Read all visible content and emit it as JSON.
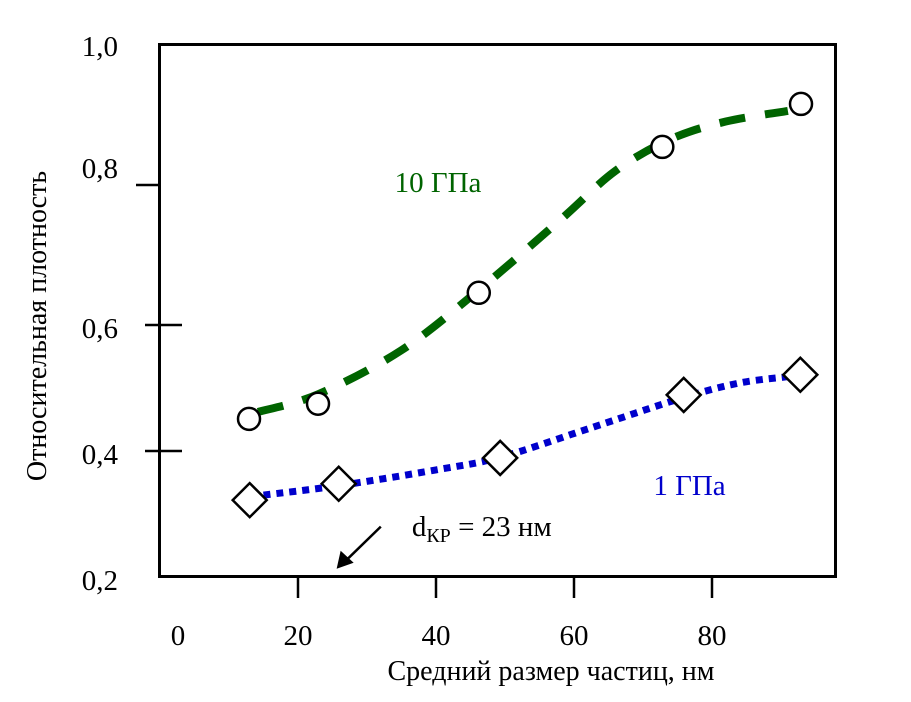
{
  "chart_data": {
    "type": "line",
    "title": "",
    "xlabel": "Средний размер частиц,  нм",
    "ylabel": "Относительная плотность",
    "xlim": [
      0,
      98
    ],
    "ylim": [
      0.2,
      1.0
    ],
    "grid": false,
    "x_ticks": [
      {
        "value": 0,
        "label": "0"
      },
      {
        "value": 20,
        "label": "20"
      },
      {
        "value": 40,
        "label": "40"
      },
      {
        "value": 60,
        "label": "60"
      },
      {
        "value": 80,
        "label": "80"
      }
    ],
    "y_ticks": [
      {
        "value": 0.2,
        "label": "0,2"
      },
      {
        "value": 0.4,
        "label": "0,4"
      },
      {
        "value": 0.6,
        "label": "0,6"
      },
      {
        "value": 0.8,
        "label": "0,8"
      },
      {
        "value": 1.0,
        "label": "1,0"
      }
    ],
    "series": [
      {
        "name": "10 ГПа",
        "color": "#006400",
        "line_style": "dashed",
        "marker": "circle",
        "label_anchor": {
          "x": 34,
          "y": 0.79
        },
        "points": [
          {
            "x": 12.9,
            "y": 0.451
          },
          {
            "x": 22.9,
            "y": 0.475
          },
          {
            "x": 46.2,
            "y": 0.646
          },
          {
            "x": 72.8,
            "y": 0.854
          },
          {
            "x": 92.9,
            "y": 0.915
          }
        ],
        "fit_curve": [
          {
            "x": 14.2,
            "y": 0.462
          },
          {
            "x": 22.9,
            "y": 0.49
          },
          {
            "x": 35,
            "y": 0.56
          },
          {
            "x": 46.2,
            "y": 0.65
          },
          {
            "x": 58,
            "y": 0.75
          },
          {
            "x": 66,
            "y": 0.82
          },
          {
            "x": 74,
            "y": 0.865
          },
          {
            "x": 82,
            "y": 0.89
          },
          {
            "x": 91,
            "y": 0.905
          }
        ]
      },
      {
        "name": "1 ГПа",
        "color": "#0000CC",
        "line_style": "dotted",
        "marker": "diamond",
        "label_anchor": {
          "x": 71.5,
          "y": 0.33
        },
        "points": [
          {
            "x": 13.0,
            "y": 0.322
          },
          {
            "x": 25.9,
            "y": 0.348
          },
          {
            "x": 49.3,
            "y": 0.389
          },
          {
            "x": 75.9,
            "y": 0.489
          },
          {
            "x": 92.8,
            "y": 0.521
          }
        ],
        "fit_curve": [
          {
            "x": 15,
            "y": 0.33
          },
          {
            "x": 25.9,
            "y": 0.345
          },
          {
            "x": 40,
            "y": 0.37
          },
          {
            "x": 49.3,
            "y": 0.39
          },
          {
            "x": 62,
            "y": 0.435
          },
          {
            "x": 75.9,
            "y": 0.485
          },
          {
            "x": 84,
            "y": 0.508
          },
          {
            "x": 91,
            "y": 0.518
          }
        ]
      }
    ],
    "annotations": [
      {
        "text_main": "d",
        "text_sub": "КР",
        "text_rest": " = 23 нм",
        "text_anchor": {
          "x": 36.5,
          "y": 0.265
        },
        "arrow_from": {
          "x": 32,
          "y": 0.28
        },
        "arrow_to": {
          "x": 25.6,
          "y": 0.213
        }
      }
    ]
  }
}
